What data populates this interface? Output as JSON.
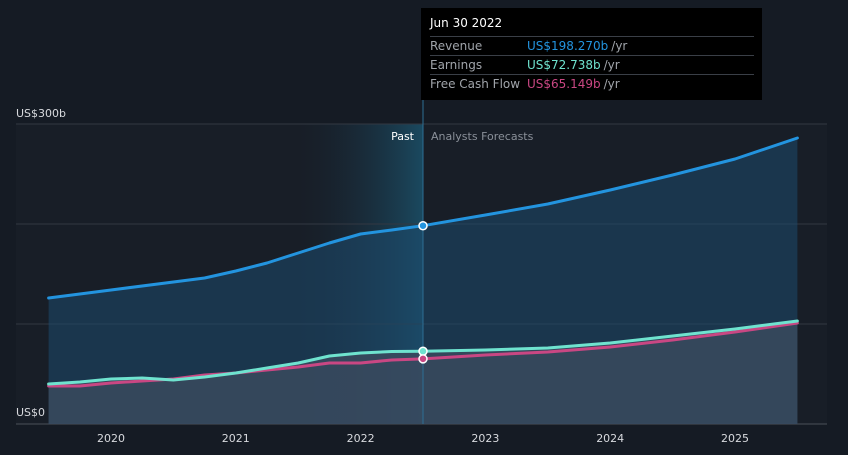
{
  "chart_data": {
    "type": "area",
    "y_axis": {
      "min": 0,
      "max": 300,
      "tick_labels": [
        "US$300b",
        "US$0"
      ],
      "gridlines": [
        0,
        100,
        200,
        300
      ]
    },
    "x_ticks": [
      {
        "label": "2020",
        "value": 2020.0
      },
      {
        "label": "2021",
        "value": 2021.0
      },
      {
        "label": "2022",
        "value": 2022.0
      },
      {
        "label": "2023",
        "value": 2023.0
      },
      {
        "label": "2024",
        "value": 2024.0
      },
      {
        "label": "2025",
        "value": 2025.0
      }
    ],
    "regions": {
      "past_label": "Past",
      "forecast_label": "Analysts Forecasts",
      "divider_x": 2022.5
    },
    "past_band_start": 2021.5,
    "colors": {
      "revenue": "#2394df",
      "earnings": "#6fe3cf",
      "fcf": "#c94783",
      "revenue_fill": "#1d4a6e",
      "lower_fill": "#3a4a5e",
      "band": "#1c5a78"
    },
    "series": [
      {
        "name": "Revenue",
        "key": "revenue",
        "points": [
          [
            2019.5,
            126
          ],
          [
            2020.0,
            134
          ],
          [
            2020.5,
            142
          ],
          [
            2020.75,
            146
          ],
          [
            2021.0,
            153
          ],
          [
            2021.25,
            161
          ],
          [
            2021.5,
            171
          ],
          [
            2021.75,
            181
          ],
          [
            2022.0,
            190
          ],
          [
            2022.25,
            194
          ],
          [
            2022.5,
            198.27
          ],
          [
            2023.0,
            209
          ],
          [
            2023.5,
            220
          ],
          [
            2024.0,
            234
          ],
          [
            2024.5,
            249
          ],
          [
            2025.0,
            265
          ],
          [
            2025.5,
            286
          ]
        ]
      },
      {
        "name": "Earnings",
        "key": "earnings",
        "points": [
          [
            2019.5,
            40
          ],
          [
            2019.75,
            42
          ],
          [
            2020.0,
            45
          ],
          [
            2020.25,
            46
          ],
          [
            2020.5,
            44
          ],
          [
            2020.75,
            47
          ],
          [
            2021.0,
            51
          ],
          [
            2021.25,
            56
          ],
          [
            2021.5,
            61
          ],
          [
            2021.75,
            68
          ],
          [
            2022.0,
            71
          ],
          [
            2022.25,
            72.5
          ],
          [
            2022.5,
            72.738
          ],
          [
            2023.0,
            74
          ],
          [
            2023.5,
            76
          ],
          [
            2024.0,
            81
          ],
          [
            2024.5,
            88
          ],
          [
            2025.0,
            95
          ],
          [
            2025.5,
            103
          ]
        ]
      },
      {
        "name": "Free Cash Flow",
        "key": "fcf",
        "points": [
          [
            2019.5,
            38
          ],
          [
            2019.75,
            38
          ],
          [
            2020.0,
            41
          ],
          [
            2020.25,
            43
          ],
          [
            2020.5,
            45
          ],
          [
            2020.75,
            49
          ],
          [
            2021.0,
            51
          ],
          [
            2021.25,
            54
          ],
          [
            2021.5,
            57
          ],
          [
            2021.75,
            61
          ],
          [
            2022.0,
            61
          ],
          [
            2022.25,
            64
          ],
          [
            2022.5,
            65.149
          ],
          [
            2023.0,
            69
          ],
          [
            2023.5,
            72
          ],
          [
            2024.0,
            77
          ],
          [
            2024.5,
            84
          ],
          [
            2025.0,
            92
          ],
          [
            2025.5,
            101
          ]
        ]
      }
    ],
    "tooltip": {
      "date": "Jun 30 2022",
      "rows": [
        {
          "name": "Revenue",
          "value": "US$198.270b",
          "unit": "/yr",
          "key": "revenue"
        },
        {
          "name": "Earnings",
          "value": "US$72.738b",
          "unit": "/yr",
          "key": "earnings"
        },
        {
          "name": "Free Cash Flow",
          "value": "US$65.149b",
          "unit": "/yr",
          "key": "fcf"
        }
      ]
    }
  }
}
